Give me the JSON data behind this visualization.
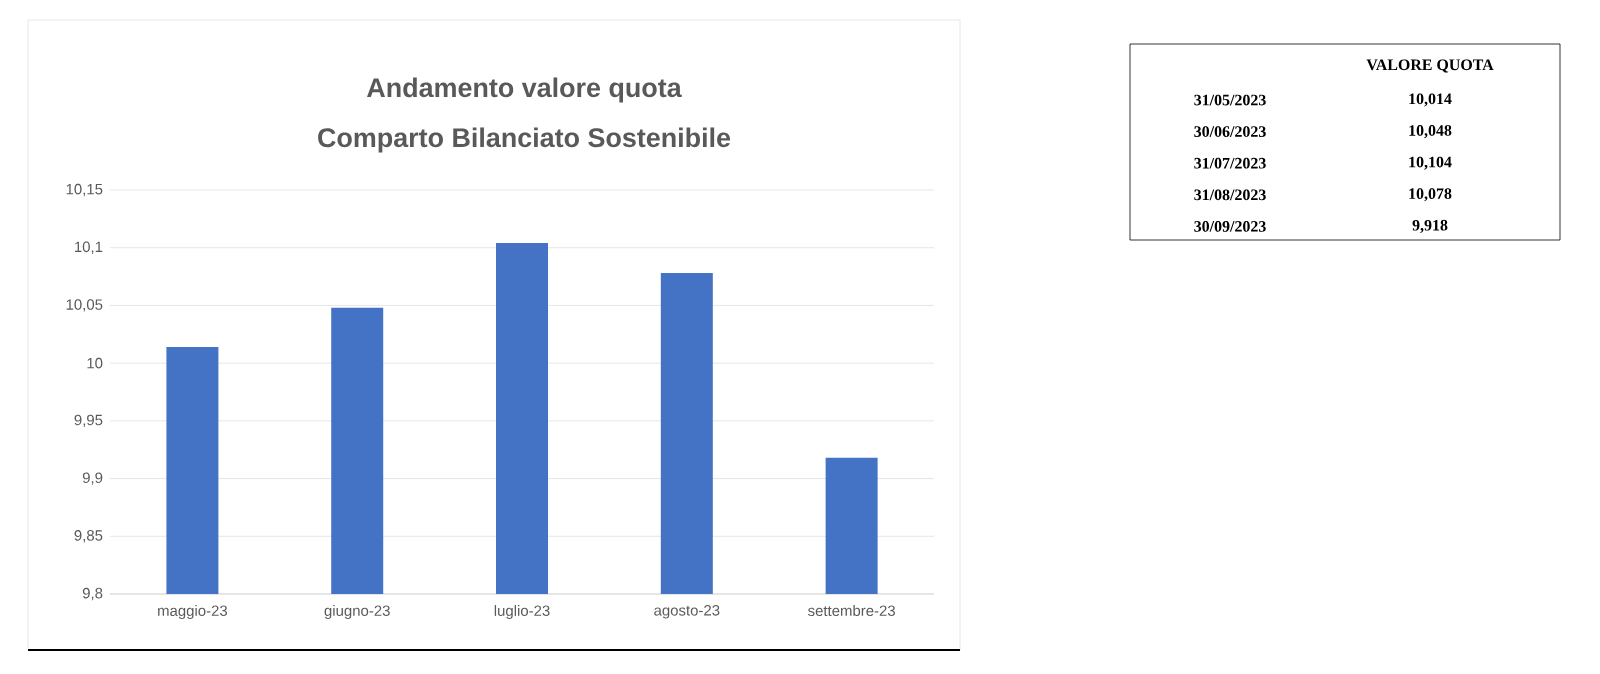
{
  "chart_data": [
    {
      "type": "bar",
      "title": "Andamento valore quota",
      "subtitle": "Comparto Bilanciato Sostenibile",
      "categories": [
        "maggio-23",
        "giugno-23",
        "luglio-23",
        "agosto-23",
        "settembre-23"
      ],
      "values": [
        10.014,
        10.048,
        10.104,
        10.078,
        9.918
      ],
      "color": "#4472c4",
      "ylim": [
        9.8,
        10.15
      ],
      "yticks": [
        {
          "value": 9.8,
          "label": "9,8"
        },
        {
          "value": 9.85,
          "label": "9,85"
        },
        {
          "value": 9.9,
          "label": "9,9"
        },
        {
          "value": 9.95,
          "label": "9,95"
        },
        {
          "value": 10,
          "label": "10"
        },
        {
          "value": 10.05,
          "label": "10,05"
        },
        {
          "value": 10.1,
          "label": "10,1"
        },
        {
          "value": 10.15,
          "label": "10,15"
        }
      ],
      "grid": "y"
    },
    {
      "type": "other",
      "annotations": [
        "VALORE QUOTA",
        "31/05/2023",
        "10,014",
        "30/06/2023",
        "10,048",
        "31/07/2023",
        "10,104",
        "31/08/2023",
        "10,078",
        "30/09/2023",
        "9,918"
      ]
    }
  ]
}
